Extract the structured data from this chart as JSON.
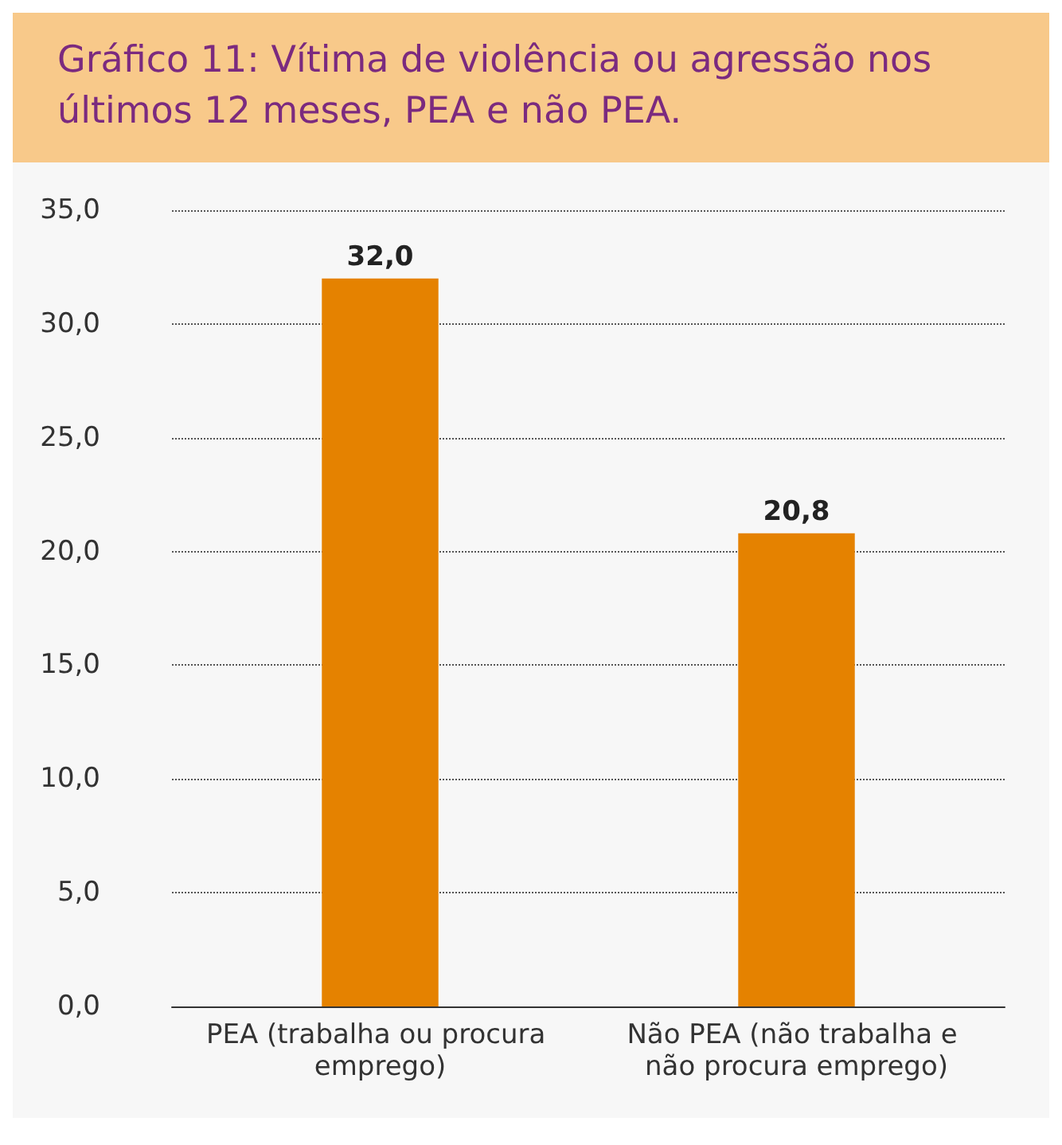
{
  "chart_data": {
    "type": "bar",
    "title": "Gráfico 11: Vítima de violência ou agressão nos últimos 12 meses, PEA e não PEA.",
    "categories": [
      "PEA (trabalha ou procura emprego)",
      "Não PEA (não trabalha e não procura emprego)"
    ],
    "values": [
      32.0,
      20.8
    ],
    "value_labels": [
      "32,0",
      "20,8"
    ],
    "color": "#e58200",
    "ylim": [
      0,
      35
    ],
    "yticks": [
      {
        "value": 0,
        "label": "0,0"
      },
      {
        "value": 5,
        "label": "5,0"
      },
      {
        "value": 10,
        "label": "10,0"
      },
      {
        "value": 15,
        "label": "15,0"
      },
      {
        "value": 20,
        "label": "20,0"
      },
      {
        "value": 25,
        "label": "25,0"
      },
      {
        "value": 30,
        "label": "30,0"
      },
      {
        "value": 35,
        "label": "35,0"
      }
    ],
    "grid": "y"
  }
}
